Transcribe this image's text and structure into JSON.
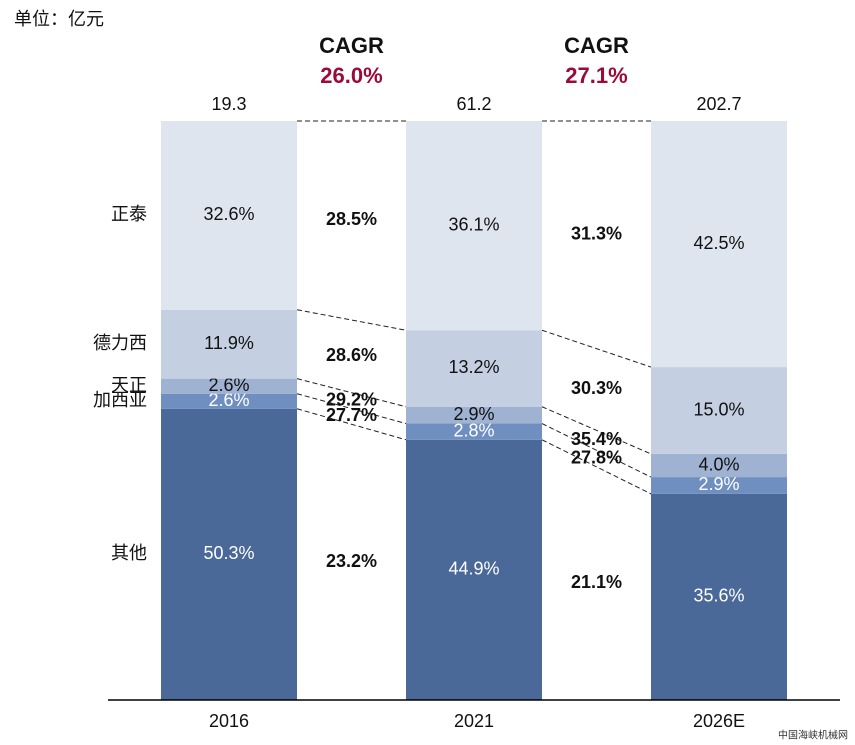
{
  "unit_label": "单位：亿元",
  "source": "中国海峡机械网",
  "chart_data": {
    "type": "stacked_bar_percent",
    "categories": [
      "2016",
      "2021",
      "2026E"
    ],
    "totals": [
      19.3,
      61.2,
      202.7
    ],
    "series": [
      {
        "name": "其他",
        "color": "#4a6898",
        "values": [
          50.3,
          44.9,
          35.6
        ],
        "value_labels": [
          "50.3%",
          "44.9%",
          "35.6%"
        ]
      },
      {
        "name": "加西亚",
        "color": "#6f8fc0",
        "values": [
          2.6,
          2.8,
          2.9
        ],
        "value_labels": [
          "2.6%",
          "2.8%",
          "2.9%"
        ]
      },
      {
        "name": "天正",
        "color": "#9fb2d2",
        "values": [
          2.6,
          2.9,
          4.0
        ],
        "value_labels": [
          "2.6%",
          "2.9%",
          "4.0%"
        ]
      },
      {
        "name": "德力西",
        "color": "#c4cfe2",
        "values": [
          11.9,
          13.2,
          15.0
        ],
        "value_labels": [
          "11.9%",
          "13.2%",
          "15.0%"
        ]
      },
      {
        "name": "正泰",
        "color": "#dfe5ef",
        "values": [
          32.6,
          36.1,
          42.5
        ],
        "value_labels": [
          "32.6%",
          "36.1%",
          "42.5%"
        ]
      }
    ],
    "cagr": [
      {
        "label": "CAGR",
        "total": 26.0,
        "total_label": "26.0%",
        "values": [
          23.2,
          27.7,
          29.2,
          28.6,
          28.5
        ],
        "value_labels": [
          "23.2%",
          "27.7%",
          "29.2%",
          "28.6%",
          "28.5%"
        ]
      },
      {
        "label": "CAGR",
        "total": 27.1,
        "total_label": "27.1%",
        "values": [
          21.1,
          27.8,
          35.4,
          30.3,
          31.3
        ],
        "value_labels": [
          "21.1%",
          "27.8%",
          "35.4%",
          "30.3%",
          "31.3%"
        ]
      }
    ]
  }
}
